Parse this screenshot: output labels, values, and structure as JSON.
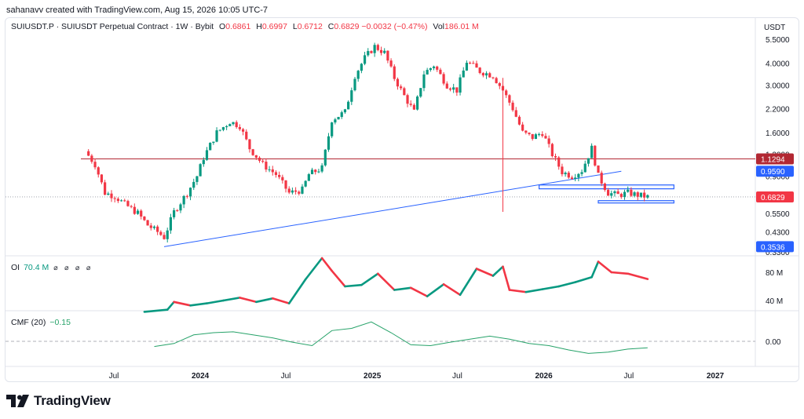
{
  "caption": "sahanavv created with TradingView.com, Aug 15, 2026 10:05 UTC-7",
  "legend": {
    "symbol": "SUIUSDT.P · SUIUSDT Perpetual Contract · 1W · Bybit",
    "open_label": "O",
    "open": "0.6861",
    "high_label": "H",
    "high": "0.6997",
    "low_label": "L",
    "low": "0.6712",
    "close_label": "C",
    "close": "0.6829",
    "change": "−0.0032 (−0.47%)",
    "vol_label": "Vol",
    "vol": "186.01 M"
  },
  "oi_legend": {
    "label": "OI",
    "value": "70.4 M",
    "glyphs": "⌀ ⌀ ⌀ ⌀"
  },
  "cmf_legend": {
    "label": "CMF (20)",
    "value": "−0.15"
  },
  "brand": {
    "name": "TradingView"
  },
  "colors": {
    "up": "#089981",
    "down": "#f23645",
    "trendline": "#2962ff",
    "hline": "#b22833",
    "box": "#2962ff",
    "cmf": "#26a269",
    "badge_red": "#b22833",
    "badge_blue": "#2962ff"
  },
  "chart_data": [
    {
      "type": "candlestick",
      "title": "SUIUSDT.P · SUIUSDT Perpetual Contract · 1W · Bybit",
      "y_unit": "USDT",
      "y_scale": "log",
      "y_ticks": [
        5.5,
        4.0,
        3.0,
        2.2,
        1.6,
        1.2,
        0.9,
        0.55,
        0.43,
        0.33
      ],
      "y_tick_labels": [
        "5.5000",
        "4.0000",
        "3.0000",
        "2.2000",
        "1.6000",
        "1.2000",
        "0.9000",
        "0.5500",
        "0.4300",
        "0.3300"
      ],
      "x_tick_labels": [
        "Jul",
        "2024",
        "Jul",
        "2025",
        "Jul",
        "2026",
        "Jul",
        "2027"
      ],
      "x_tick_dates": [
        "2023-07-01",
        "2024-01-01",
        "2024-07-01",
        "2025-01-01",
        "2025-07-01",
        "2026-01-01",
        "2026-07-01",
        "2027-01-01"
      ],
      "price_badges": [
        {
          "value": 1.1294,
          "label": "1.1294",
          "color": "#b22833"
        },
        {
          "value": 0.959,
          "label": "0.9590",
          "color": "#2962ff"
        },
        {
          "value": 0.6829,
          "label": "0.6829",
          "color": "#f23645"
        },
        {
          "value": 0.3536,
          "label": "0.3536",
          "color": "#2962ff"
        }
      ],
      "horizontal_line": {
        "value": 1.1294
      },
      "trendline": [
        {
          "date": "2023-10-16",
          "value": 0.3536
        },
        {
          "date": "2026-06-15",
          "value": 0.959
        }
      ],
      "zones": [
        {
          "from": "2025-12-22",
          "to": "2026-10-05",
          "low": 0.76,
          "high": 0.8
        },
        {
          "from": "2026-04-27",
          "to": "2026-10-05",
          "low": 0.63,
          "high": 0.65
        }
      ],
      "last_close": 0.6829,
      "close_path": [
        {
          "date": "2023-05-01",
          "value": 1.25
        },
        {
          "date": "2023-05-22",
          "value": 1.05
        },
        {
          "date": "2023-06-12",
          "value": 0.72
        },
        {
          "date": "2023-07-03",
          "value": 0.69
        },
        {
          "date": "2023-07-24",
          "value": 0.62
        },
        {
          "date": "2023-08-21",
          "value": 0.55
        },
        {
          "date": "2023-09-11",
          "value": 0.47
        },
        {
          "date": "2023-10-02",
          "value": 0.43
        },
        {
          "date": "2023-10-16",
          "value": 0.4
        },
        {
          "date": "2023-11-06",
          "value": 0.56
        },
        {
          "date": "2023-12-04",
          "value": 0.72
        },
        {
          "date": "2023-12-25",
          "value": 0.9
        },
        {
          "date": "2024-01-08",
          "value": 1.15
        },
        {
          "date": "2024-02-05",
          "value": 1.6
        },
        {
          "date": "2024-03-04",
          "value": 1.85
        },
        {
          "date": "2024-03-25",
          "value": 1.75
        },
        {
          "date": "2024-04-15",
          "value": 1.3
        },
        {
          "date": "2024-05-13",
          "value": 1.05
        },
        {
          "date": "2024-06-10",
          "value": 0.92
        },
        {
          "date": "2024-07-08",
          "value": 0.72
        },
        {
          "date": "2024-08-05",
          "value": 0.75
        },
        {
          "date": "2024-08-19",
          "value": 0.92
        },
        {
          "date": "2024-09-16",
          "value": 1.0
        },
        {
          "date": "2024-10-07",
          "value": 1.9
        },
        {
          "date": "2024-11-04",
          "value": 2.1
        },
        {
          "date": "2024-11-25",
          "value": 3.4
        },
        {
          "date": "2024-12-16",
          "value": 4.3
        },
        {
          "date": "2025-01-06",
          "value": 5.0
        },
        {
          "date": "2025-01-27",
          "value": 4.6
        },
        {
          "date": "2025-02-17",
          "value": 3.3
        },
        {
          "date": "2025-03-10",
          "value": 2.6
        },
        {
          "date": "2025-03-31",
          "value": 2.1
        },
        {
          "date": "2025-04-21",
          "value": 3.5
        },
        {
          "date": "2025-05-12",
          "value": 3.9
        },
        {
          "date": "2025-06-09",
          "value": 3.0
        },
        {
          "date": "2025-06-30",
          "value": 2.8
        },
        {
          "date": "2025-07-21",
          "value": 4.1
        },
        {
          "date": "2025-08-18",
          "value": 3.6
        },
        {
          "date": "2025-09-15",
          "value": 3.4
        },
        {
          "date": "2025-10-06",
          "value": 2.8
        },
        {
          "date": "2025-10-27",
          "value": 2.2
        },
        {
          "date": "2025-11-17",
          "value": 1.6
        },
        {
          "date": "2025-12-08",
          "value": 1.5
        },
        {
          "date": "2025-12-29",
          "value": 1.6
        },
        {
          "date": "2026-01-19",
          "value": 1.2
        },
        {
          "date": "2026-02-09",
          "value": 0.95
        },
        {
          "date": "2026-03-02",
          "value": 0.9
        },
        {
          "date": "2026-03-23",
          "value": 0.97
        },
        {
          "date": "2026-04-13",
          "value": 1.3
        },
        {
          "date": "2026-04-27",
          "value": 0.9
        },
        {
          "date": "2026-05-18",
          "value": 0.72
        },
        {
          "date": "2026-06-08",
          "value": 0.7
        },
        {
          "date": "2026-06-29",
          "value": 0.72
        },
        {
          "date": "2026-07-20",
          "value": 0.7
        },
        {
          "date": "2026-08-10",
          "value": 0.6829
        }
      ]
    },
    {
      "type": "line",
      "title": "OI",
      "y_tick_labels": [
        "80 M",
        "40 M"
      ],
      "y_ticks": [
        80,
        40
      ],
      "last_value": 70.4,
      "series": [
        {
          "name": "OI",
          "x": [
            "2023-09-04",
            "2023-10-23",
            "2023-11-06",
            "2023-12-11",
            "2024-01-15",
            "2024-02-19",
            "2024-03-25",
            "2024-04-29",
            "2024-06-03",
            "2024-07-08",
            "2024-08-12",
            "2024-09-16",
            "2024-10-07",
            "2024-11-04",
            "2024-12-09",
            "2025-01-13",
            "2025-02-17",
            "2025-03-24",
            "2025-04-28",
            "2025-06-02",
            "2025-07-07",
            "2025-08-11",
            "2025-09-15",
            "2025-10-06",
            "2025-10-20",
            "2025-11-24",
            "2025-12-29",
            "2026-02-02",
            "2026-03-09",
            "2026-04-13",
            "2026-04-27",
            "2026-05-25",
            "2026-06-29",
            "2026-08-10"
          ],
          "values": [
            24,
            27,
            38,
            33,
            36,
            40,
            44,
            38,
            43,
            36,
            70,
            100,
            82,
            60,
            62,
            78,
            55,
            58,
            46,
            63,
            48,
            85,
            75,
            88,
            55,
            52,
            56,
            60,
            66,
            73,
            95,
            80,
            78,
            70.4
          ]
        }
      ]
    },
    {
      "type": "line",
      "title": "CMF (20)",
      "y_tick_labels": [
        "0.00"
      ],
      "y_ticks": [
        0.0
      ],
      "last_value": -0.15,
      "series": [
        {
          "name": "CMF (20)",
          "x": [
            "2023-09-25",
            "2023-11-06",
            "2023-12-18",
            "2024-01-29",
            "2024-03-11",
            "2024-04-22",
            "2024-06-03",
            "2024-07-15",
            "2024-08-26",
            "2024-10-07",
            "2024-11-18",
            "2024-12-30",
            "2025-02-10",
            "2025-03-24",
            "2025-05-05",
            "2025-06-16",
            "2025-07-28",
            "2025-09-08",
            "2025-10-20",
            "2025-12-01",
            "2026-01-12",
            "2026-02-23",
            "2026-04-06",
            "2026-05-18",
            "2026-06-29",
            "2026-08-10"
          ],
          "values": [
            -0.12,
            -0.05,
            0.15,
            0.2,
            0.22,
            0.15,
            0.08,
            -0.02,
            -0.1,
            0.25,
            0.3,
            0.45,
            0.2,
            -0.08,
            -0.1,
            -0.02,
            0.05,
            0.12,
            0.05,
            -0.05,
            -0.1,
            -0.2,
            -0.28,
            -0.25,
            -0.18,
            -0.15
          ]
        }
      ]
    }
  ]
}
